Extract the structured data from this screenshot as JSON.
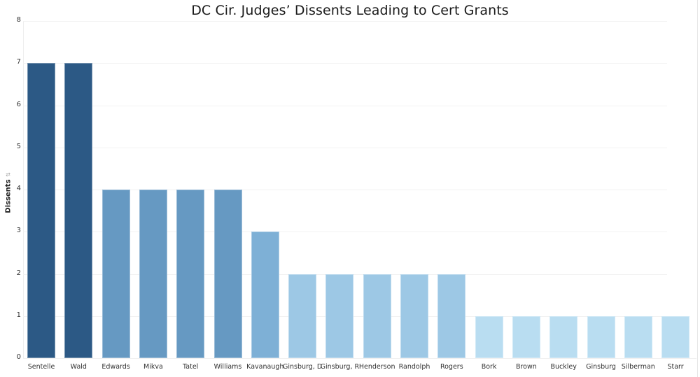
{
  "chart_data": {
    "type": "bar",
    "title": "DC Cir. Judges’ Dissents Leading to Cert Grants",
    "xlabel": "",
    "ylabel": "Dissents",
    "ylim": [
      0,
      8
    ],
    "yticks": [
      "0",
      "1",
      "2",
      "3",
      "4",
      "5",
      "6",
      "7",
      "8"
    ],
    "grid": true,
    "legend": null,
    "categories": [
      "Sentelle",
      "Wald",
      "Edwards",
      "Mikva",
      "Tatel",
      "Williams",
      "Kavanaugh",
      "Ginsburg, D",
      "Ginsburg, R",
      "Henderson",
      "Randolph",
      "Rogers",
      "Bork",
      "Brown",
      "Buckley",
      "Ginsburg",
      "Silberman",
      "Starr"
    ],
    "values": [
      7,
      7,
      4,
      4,
      4,
      4,
      3,
      2,
      2,
      2,
      2,
      2,
      1,
      1,
      1,
      1,
      1,
      1
    ],
    "colors": {
      "7": "#2c5985",
      "4": "#6699c2",
      "3": "#7eb0d6",
      "2": "#9dc8e5",
      "1": "#b9ddf1"
    }
  },
  "yaxis": {
    "label": "Dissents",
    "sort_indicator": "⇅"
  }
}
